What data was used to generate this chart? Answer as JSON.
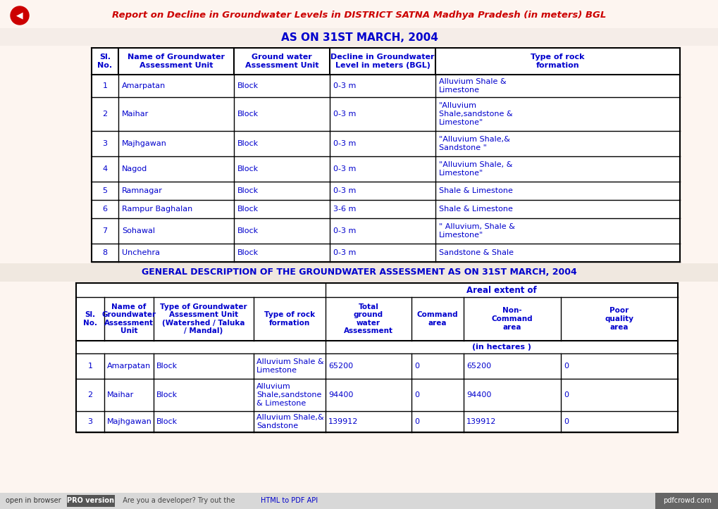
{
  "title": "Report on Decline in Groundwater Levels in DISTRICT SATNA Madhya Pradesh (in meters) BGL",
  "subtitle": "AS ON 31ST MARCH, 2004",
  "bg_color": "#fdf5f0",
  "table1_data": [
    [
      "1",
      "Amarpatan",
      "Block",
      "0-3 m",
      "Alluvium Shale &\nLimestone"
    ],
    [
      "2",
      "Maihar",
      "Block",
      "0-3 m",
      "\"Alluvium\nShale,sandstone &\nLimestone\""
    ],
    [
      "3",
      "Majhgawan",
      "Block",
      "0-3 m",
      "\"Alluvium Shale,&\nSandstone \""
    ],
    [
      "4",
      "Nagod",
      "Block",
      "0-3 m",
      "\"Alluvium Shale, &\nLimestone\""
    ],
    [
      "5",
      "Ramnagar",
      "Block",
      "0-3 m",
      "Shale & Limestone"
    ],
    [
      "6",
      "Rampur Baghalan",
      "Block",
      "3-6 m",
      "Shale & Limestone"
    ],
    [
      "7",
      "Sohawal",
      "Block",
      "0-3 m",
      "\" Alluvium, Shale &\nLimestone\""
    ],
    [
      "8",
      "Unchehra",
      "Block",
      "0-3 m",
      "Sandstone & Shale"
    ]
  ],
  "section2_title": "GENERAL DESCRIPTION OF THE GROUNDWATER ASSESSMENT AS ON 31ST MARCH, 2004",
  "table2_data": [
    [
      "1",
      "Amarpatan",
      "Block",
      "Alluvium Shale &\nLimestone",
      "65200",
      "0",
      "65200",
      "0"
    ],
    [
      "2",
      "Maihar",
      "Block",
      "Alluvium\nShale,sandstone\n& Limestone",
      "94400",
      "0",
      "94400",
      "0"
    ],
    [
      "3",
      "Majhgawan",
      "Block",
      "Alluvium Shale,&\nSandstone",
      "139912",
      "0",
      "139912",
      "0"
    ]
  ],
  "text_color": "#0000cd",
  "title_color": "#cc0000",
  "border_color": "#000000",
  "footer_text": "open in browser",
  "footer_pro": "PRO version",
  "footer_mid": "Are you a developer? Try out the ",
  "footer_link": "HTML to PDF API",
  "footer_right": "pdfcrowd.com",
  "subtitle_bg": "#f5ede8",
  "section2_bg": "#f0e8e0"
}
